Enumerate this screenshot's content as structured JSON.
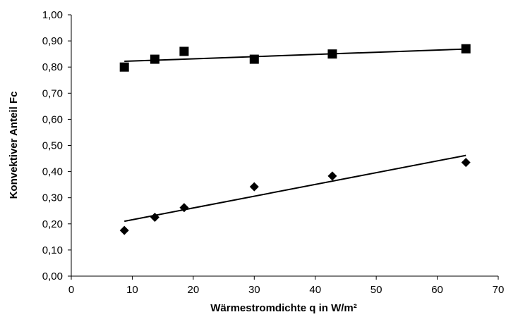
{
  "chart_data": {
    "type": "scatter",
    "title": "",
    "xlabel": "Wärmestromdichte q in W/m²",
    "ylabel": "Konvektiver Anteil Fc",
    "xlim": [
      0,
      70
    ],
    "ylim": [
      0,
      1
    ],
    "x_ticks": [
      "0",
      "10",
      "20",
      "30",
      "40",
      "50",
      "60",
      "70"
    ],
    "y_ticks": [
      "0,00",
      "0,10",
      "0,20",
      "0,30",
      "0,40",
      "0,50",
      "0,60",
      "0,70",
      "0,80",
      "0,90",
      "1,00"
    ],
    "grid": false,
    "legend": "none",
    "series": [
      {
        "marker": "square",
        "color": "#000000",
        "x": [
          8.7,
          13.7,
          18.5,
          30.0,
          42.8,
          64.7
        ],
        "y": [
          0.8,
          0.83,
          0.86,
          0.83,
          0.85,
          0.87
        ],
        "trendline": {
          "x": [
            8.7,
            64.7
          ],
          "y": [
            0.822,
            0.869
          ]
        }
      },
      {
        "marker": "diamond",
        "color": "#000000",
        "x": [
          8.7,
          13.7,
          18.5,
          30.0,
          42.8,
          64.7
        ],
        "y": [
          0.175,
          0.225,
          0.262,
          0.342,
          0.383,
          0.435
        ],
        "trendline": {
          "x": [
            8.7,
            64.7
          ],
          "y": [
            0.21,
            0.462
          ]
        }
      }
    ]
  }
}
